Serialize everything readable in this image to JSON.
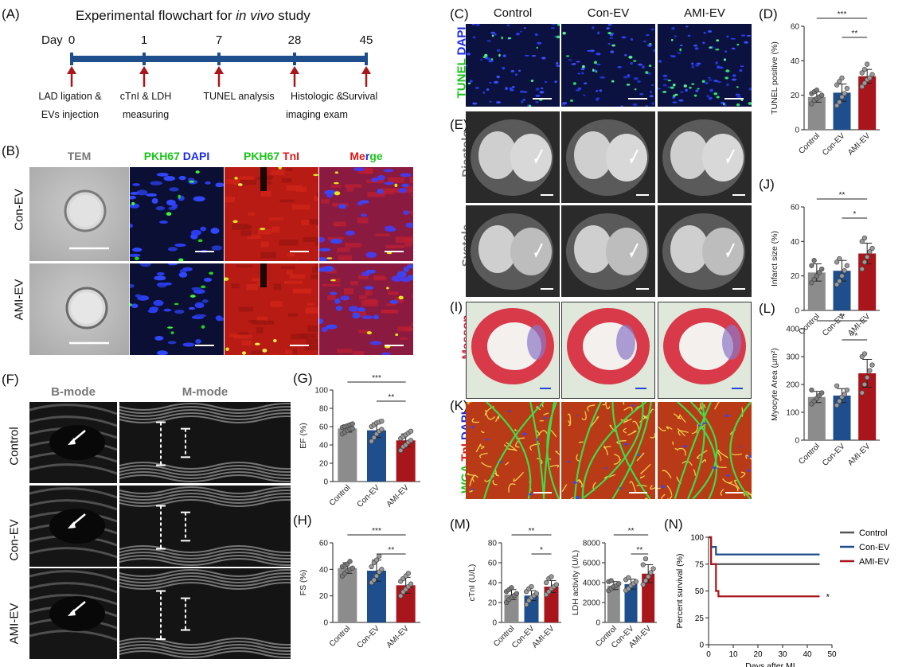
{
  "panels": {
    "A": "(A)",
    "B": "(B)",
    "C": "(C)",
    "D": "(D)",
    "E": "(E)",
    "F": "(F)",
    "G": "(G)",
    "H": "(H)",
    "I": "(I)",
    "J": "(J)",
    "K": "(K)",
    "L": "(L)",
    "M": "(M)",
    "N": "(N)"
  },
  "flowchart": {
    "title_prefix": "Experimental flowchart for ",
    "title_italic": "in vivo",
    "title_suffix": " study",
    "day_label": "Day",
    "days": [
      "0",
      "1",
      "7",
      "28",
      "45"
    ],
    "labels": [
      [
        "LAD ligation &",
        "EVs injection"
      ],
      [
        "cTnI  & LDH",
        "measuring"
      ],
      [
        "TUNEL analysis",
        ""
      ],
      [
        "Histologic &",
        "imaging exam"
      ],
      [
        "Survival",
        ""
      ]
    ]
  },
  "panel_B": {
    "headers": {
      "tem": "TEM",
      "pkh_dapi_a": "PKH67",
      "pkh_dapi_b": " DAPI",
      "pkh_tni_a": "PKH67",
      "pkh_tni_b": " TnI",
      "merge_a": "Me",
      "merge_b": "r",
      "merge_c": "ge"
    },
    "rows": [
      "Con-EV",
      "AMI-EV"
    ]
  },
  "panel_C": {
    "cols": [
      "Control",
      "Con-EV",
      "AMI-EV"
    ],
    "side_a": "TUNEL",
    "side_b": " DAPI"
  },
  "panel_E": {
    "rows": [
      "Diastole",
      "Systole"
    ]
  },
  "panel_I": {
    "side": "Masson"
  },
  "panel_K": {
    "side_a": "WGA",
    "side_b": " TnI",
    "side_c": " DAPI"
  },
  "panel_F": {
    "headers": [
      "B-mode",
      "M-mode"
    ],
    "rows": [
      "Control",
      "Con-EV",
      "AMI-EV"
    ]
  },
  "colors": {
    "control": "#8c8c8c",
    "con_ev": "#1f4e8c",
    "ami_ev": "#a8161b",
    "flow_bar": "#1f4e8c",
    "arrow": "#a8161b"
  },
  "chart_data": [
    {
      "id": "D",
      "type": "bar",
      "categories": [
        "Control",
        "Con-EV",
        "AMI-EV"
      ],
      "values": [
        19,
        21.5,
        31
      ],
      "errors": [
        3,
        5,
        4
      ],
      "points": [
        [
          15,
          17,
          18,
          19,
          20,
          21,
          22,
          23
        ],
        [
          14,
          16,
          19,
          21,
          24,
          26,
          28,
          30
        ],
        [
          25,
          27,
          29,
          30,
          32,
          33,
          35,
          38
        ]
      ],
      "ylabel": "TUNEL positive (%)",
      "ylim": [
        0,
        60
      ],
      "yticks": [
        0,
        20,
        40,
        60
      ],
      "sig": [
        {
          "from": 0,
          "to": 2,
          "label": "***"
        },
        {
          "from": 1,
          "to": 2,
          "label": "**"
        }
      ]
    },
    {
      "id": "J",
      "type": "bar",
      "categories": [
        "Control",
        "Con-EV",
        "AMI-EV"
      ],
      "values": [
        22,
        23,
        33
      ],
      "errors": [
        5,
        6,
        6
      ],
      "points": [
        [
          16,
          18,
          20,
          22,
          24,
          26,
          29
        ],
        [
          15,
          17,
          20,
          23,
          26,
          28,
          30
        ],
        [
          24,
          28,
          31,
          34,
          36,
          40,
          42
        ]
      ],
      "ylabel": "Infarct size (%)",
      "ylim": [
        0,
        60
      ],
      "yticks": [
        0,
        20,
        40,
        60
      ],
      "sig": [
        {
          "from": 0,
          "to": 2,
          "label": "**"
        },
        {
          "from": 1,
          "to": 2,
          "label": "*"
        }
      ]
    },
    {
      "id": "L",
      "type": "bar",
      "categories": [
        "Control",
        "Con-EV",
        "AMI-EV"
      ],
      "values": [
        155,
        160,
        240
      ],
      "errors": [
        20,
        25,
        50
      ],
      "points": [
        [
          130,
          140,
          150,
          160,
          170,
          180
        ],
        [
          125,
          140,
          155,
          165,
          180,
          195
        ],
        [
          170,
          200,
          225,
          250,
          270,
          300,
          310
        ]
      ],
      "ylabel": "Myocyte Area (μm²)",
      "ylim": [
        0,
        400
      ],
      "yticks": [
        0,
        100,
        200,
        300,
        400
      ],
      "sig": [
        {
          "from": 0,
          "to": 2,
          "label": "**"
        },
        {
          "from": 1,
          "to": 2,
          "label": "**"
        }
      ]
    },
    {
      "id": "G",
      "type": "bar",
      "categories": [
        "Control",
        "Con-EV",
        "AMI-EV"
      ],
      "values": [
        58,
        56,
        45
      ],
      "errors": [
        4,
        8,
        7
      ],
      "points": [
        [
          52,
          54,
          56,
          57,
          58,
          59,
          60,
          61,
          62,
          63
        ],
        [
          44,
          48,
          52,
          55,
          57,
          60,
          62,
          64,
          65,
          66
        ],
        [
          34,
          38,
          40,
          43,
          45,
          47,
          49,
          51,
          53,
          55
        ]
      ],
      "ylabel": "EF (%)",
      "ylim": [
        0,
        100
      ],
      "yticks": [
        0,
        20,
        40,
        60,
        80,
        100
      ],
      "sig": [
        {
          "from": 0,
          "to": 2,
          "label": "***"
        },
        {
          "from": 1,
          "to": 2,
          "label": "**"
        }
      ]
    },
    {
      "id": "H",
      "type": "bar",
      "categories": [
        "Control",
        "Con-EV",
        "AMI-EV"
      ],
      "values": [
        41,
        39,
        28
      ],
      "errors": [
        4,
        8,
        6
      ],
      "points": [
        [
          35,
          37,
          39,
          40,
          41,
          42,
          43,
          44,
          46
        ],
        [
          30,
          32,
          35,
          38,
          40,
          42,
          45,
          47,
          50
        ],
        [
          20,
          23,
          25,
          27,
          29,
          31,
          33,
          35,
          37
        ]
      ],
      "ylabel": "FS (%)",
      "ylim": [
        0,
        60
      ],
      "yticks": [
        0,
        20,
        40,
        60
      ],
      "sig": [
        {
          "from": 0,
          "to": 2,
          "label": "***"
        },
        {
          "from": 1,
          "to": 2,
          "label": "**"
        }
      ]
    },
    {
      "id": "M1",
      "type": "bar",
      "categories": [
        "Control",
        "Con-EV",
        "AMI-EV"
      ],
      "values": [
        28,
        27,
        36
      ],
      "errors": [
        5,
        5,
        6
      ],
      "points": [
        [
          20,
          23,
          25,
          27,
          29,
          31,
          33,
          35
        ],
        [
          18,
          22,
          25,
          27,
          29,
          31,
          34,
          36
        ],
        [
          28,
          31,
          34,
          36,
          38,
          40,
          44,
          46
        ]
      ],
      "ylabel": "cTnI (U/L)",
      "ylim": [
        0,
        80
      ],
      "yticks": [
        0,
        20,
        40,
        60,
        80
      ],
      "sig": [
        {
          "from": 0,
          "to": 2,
          "label": "**"
        },
        {
          "from": 1,
          "to": 2,
          "label": "*"
        }
      ]
    },
    {
      "id": "M2",
      "type": "bar",
      "categories": [
        "Control",
        "Con-EV",
        "AMI-EV"
      ],
      "values": [
        3700,
        3850,
        4900
      ],
      "errors": [
        400,
        500,
        900
      ],
      "points": [
        [
          3200,
          3400,
          3600,
          3700,
          3900,
          4100,
          4200
        ],
        [
          3200,
          3400,
          3700,
          3900,
          4100,
          4300,
          4500
        ],
        [
          3800,
          4200,
          4600,
          5000,
          5400,
          5800,
          6400
        ]
      ],
      "ylabel": "LDH activity (U/L)",
      "ylim": [
        0,
        8000
      ],
      "yticks": [
        0,
        2000,
        4000,
        6000,
        8000
      ],
      "sig": [
        {
          "from": 0,
          "to": 2,
          "label": "**"
        },
        {
          "from": 1,
          "to": 2,
          "label": "**"
        }
      ]
    },
    {
      "id": "N",
      "type": "line",
      "title": "",
      "xlabel": "Days after MI",
      "ylabel": "Percent survival (%)",
      "xlim": [
        0,
        50
      ],
      "ylim": [
        0,
        100
      ],
      "xticks": [
        0,
        10,
        20,
        30,
        40,
        50
      ],
      "yticks": [
        0,
        25,
        50,
        75,
        100
      ],
      "series": [
        {
          "name": "Control",
          "points": [
            [
              0,
              100
            ],
            [
              1,
              100
            ],
            [
              1,
              75
            ],
            [
              45,
              75
            ]
          ]
        },
        {
          "name": "Con-EV",
          "points": [
            [
              0,
              100
            ],
            [
              1,
              100
            ],
            [
              1,
              91
            ],
            [
              3,
              91
            ],
            [
              3,
              84
            ],
            [
              45,
              84
            ]
          ]
        },
        {
          "name": "AMI-EV",
          "points": [
            [
              0,
              100
            ],
            [
              1,
              100
            ],
            [
              1,
              75
            ],
            [
              3,
              75
            ],
            [
              3,
              50
            ],
            [
              4,
              50
            ],
            [
              4,
              45
            ],
            [
              45,
              45
            ]
          ]
        }
      ],
      "annotation": "*"
    }
  ]
}
